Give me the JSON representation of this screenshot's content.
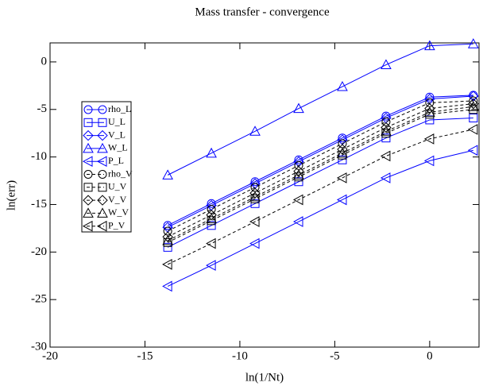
{
  "chart_data": {
    "type": "line",
    "title": "Mass transfer - convergence",
    "x_label": "ln(1/Nt)",
    "y_label": "ln(err)",
    "x": [
      -13.8,
      -11.5,
      -9.2,
      -6.9,
      -4.6,
      -2.3,
      0,
      2.3
    ],
    "xlim": [
      -20,
      2.6
    ],
    "ylim": [
      -30,
      2
    ],
    "xticks": [
      -20,
      -15,
      -10,
      -5,
      0
    ],
    "yticks": [
      -30,
      -25,
      -20,
      -15,
      -10,
      -5,
      0
    ],
    "legend": "upper left",
    "series": [
      {
        "name": "rho_L",
        "color": "#0000ff",
        "marker": "circle",
        "dashed": false,
        "values": [
          -17.2,
          -14.9,
          -12.6,
          -10.3,
          -8.0,
          -5.7,
          -3.7,
          -3.5
        ]
      },
      {
        "name": "U_L",
        "color": "#0000ff",
        "marker": "square",
        "dashed": false,
        "values": [
          -19.5,
          -17.2,
          -14.9,
          -12.6,
          -10.3,
          -8.0,
          -6.1,
          -5.9
        ]
      },
      {
        "name": "V_L",
        "color": "#0000ff",
        "marker": "diamond",
        "dashed": false,
        "values": [
          -17.4,
          -15.1,
          -12.8,
          -10.5,
          -8.2,
          -5.9,
          -3.9,
          -3.6
        ]
      },
      {
        "name": "W_L",
        "color": "#0000ff",
        "marker": "triangle-up",
        "dashed": false,
        "values": [
          -11.9,
          -9.6,
          -7.3,
          -4.9,
          -2.6,
          -0.3,
          1.7,
          1.9
        ]
      },
      {
        "name": "P_L",
        "color": "#0000ff",
        "marker": "triangle-left",
        "dashed": false,
        "values": [
          -23.6,
          -21.4,
          -19.1,
          -16.8,
          -14.5,
          -12.2,
          -10.4,
          -9.3
        ]
      },
      {
        "name": "rho_V",
        "color": "#000000",
        "marker": "circle",
        "dashed": true,
        "values": [
          -17.8,
          -15.5,
          -13.2,
          -10.9,
          -8.6,
          -6.3,
          -4.3,
          -4.1
        ]
      },
      {
        "name": "U_V",
        "color": "#000000",
        "marker": "square",
        "dashed": true,
        "values": [
          -19.0,
          -16.7,
          -14.4,
          -12.1,
          -9.8,
          -7.5,
          -5.5,
          -5.0
        ]
      },
      {
        "name": "V_V",
        "color": "#000000",
        "marker": "diamond",
        "dashed": true,
        "values": [
          -18.4,
          -16.1,
          -13.8,
          -11.5,
          -9.2,
          -6.9,
          -4.9,
          -4.4
        ]
      },
      {
        "name": "W_V",
        "color": "#000000",
        "marker": "triangle-up",
        "dashed": true,
        "values": [
          -18.8,
          -16.5,
          -14.2,
          -11.9,
          -9.6,
          -7.3,
          -5.3,
          -4.7
        ]
      },
      {
        "name": "P_V",
        "color": "#000000",
        "marker": "triangle-left",
        "dashed": true,
        "values": [
          -21.3,
          -19.1,
          -16.8,
          -14.5,
          -12.2,
          -9.9,
          -8.1,
          -7.1
        ]
      }
    ]
  }
}
